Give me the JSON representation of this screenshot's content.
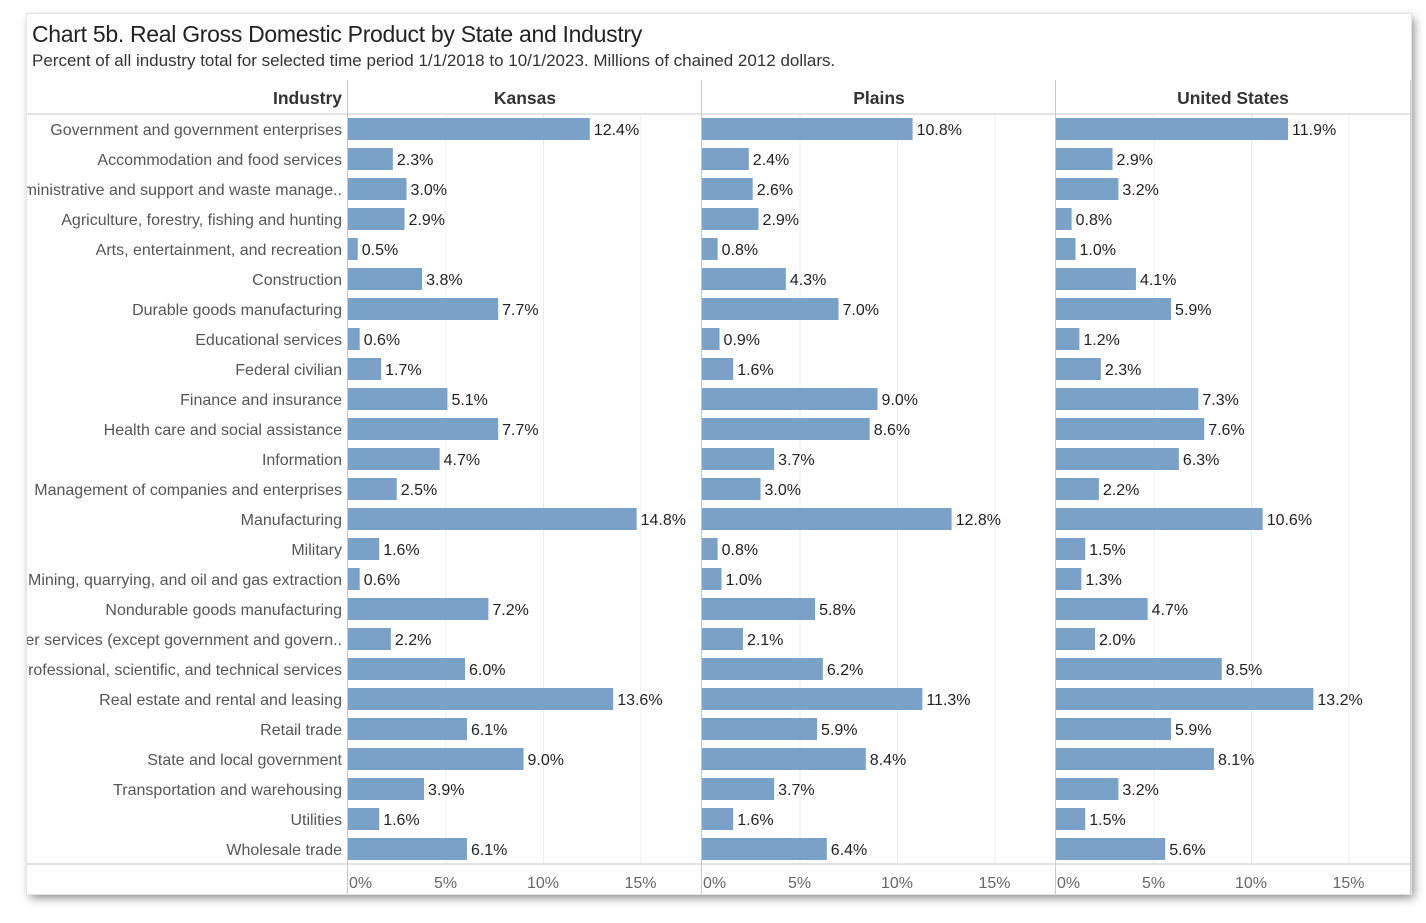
{
  "title": "Chart 5b. Real Gross Domestic Product by State and Industry",
  "subtitle": "Percent of all industry total for selected time period 1/1/2018 to 10/1/2023. Millions of chained 2012 dollars.",
  "colors": {
    "bar": "#7aa2c8",
    "grid": "#ececec",
    "rule": "#c8c8c8"
  },
  "chart_data": {
    "type": "bar",
    "orientation": "horizontal",
    "row_header": "Industry",
    "categories": [
      "Government and government enterprises",
      "Accommodation and food services",
      "Administrative and support and waste manage..",
      "Agriculture, forestry, fishing and hunting",
      "Arts, entertainment, and recreation",
      "Construction",
      "Durable goods manufacturing",
      "Educational services",
      "Federal civilian",
      "Finance and insurance",
      "Health care and social assistance",
      "Information",
      "Management of companies and enterprises",
      "Manufacturing",
      "Military",
      "Mining, quarrying, and oil and gas extraction",
      "Nondurable goods manufacturing",
      "Other services (except government and govern..",
      "Professional, scientific, and technical services",
      "Real estate and rental and leasing",
      "Retail trade",
      "State and local government",
      "Transportation and warehousing",
      "Utilities",
      "Wholesale trade"
    ],
    "series": [
      {
        "name": "Kansas",
        "values": [
          12.4,
          2.3,
          3.0,
          2.9,
          0.5,
          3.8,
          7.7,
          0.6,
          1.7,
          5.1,
          7.7,
          4.7,
          2.5,
          14.8,
          1.6,
          0.6,
          7.2,
          2.2,
          6.0,
          13.6,
          6.1,
          9.0,
          3.9,
          1.6,
          6.1
        ]
      },
      {
        "name": "Plains",
        "values": [
          10.8,
          2.4,
          2.6,
          2.9,
          0.8,
          4.3,
          7.0,
          0.9,
          1.6,
          9.0,
          8.6,
          3.7,
          3.0,
          12.8,
          0.8,
          1.0,
          5.8,
          2.1,
          6.2,
          11.3,
          5.9,
          8.4,
          3.7,
          1.6,
          6.4
        ]
      },
      {
        "name": "United States",
        "values": [
          11.9,
          2.9,
          3.2,
          0.8,
          1.0,
          4.1,
          5.9,
          1.2,
          2.3,
          7.3,
          7.6,
          6.3,
          2.2,
          10.6,
          1.5,
          1.3,
          4.7,
          2.0,
          8.5,
          13.2,
          5.9,
          8.1,
          3.2,
          1.5,
          5.6
        ]
      }
    ],
    "x_ticks": [
      "0%",
      "5%",
      "10%",
      "15%"
    ],
    "tick_values": [
      0,
      5,
      10,
      15
    ],
    "xlim": [
      0,
      17.9
    ],
    "value_format": "percent_one_decimal",
    "grid": true,
    "legend": "none"
  }
}
